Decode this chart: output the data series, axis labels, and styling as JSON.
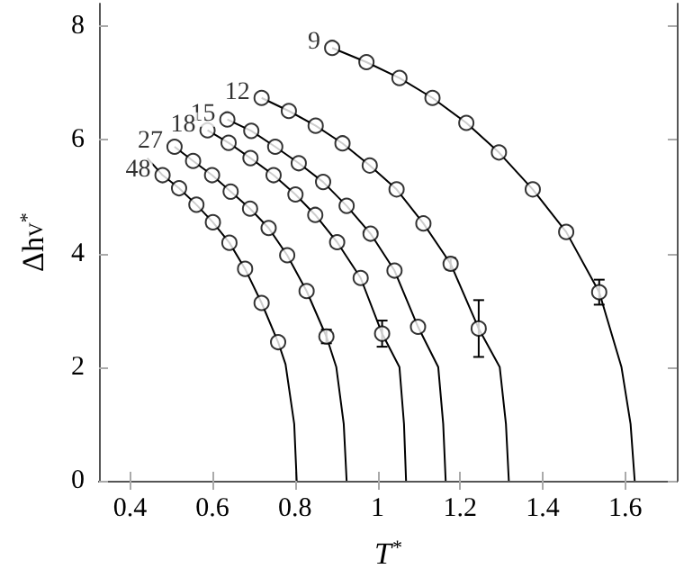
{
  "chart_data": {
    "type": "scatter",
    "xlabel": "T$^{*}$",
    "ylabel": "Δh$_{V}$$^{*}$",
    "xlim": [
      0.325,
      1.725
    ],
    "xticks": [
      0.4,
      0.6,
      0.8,
      1,
      1.2,
      1.4,
      1.6
    ],
    "ylim": [
      0,
      8.4
    ],
    "yticks": [
      0,
      2,
      4,
      6,
      8
    ],
    "grid": false,
    "legend": false,
    "marker": "circle",
    "line_style": "solid",
    "series": [
      {
        "type": "line",
        "marker": "none",
        "color": "#000000",
        "x": [
          0.89,
          0.973,
          1.053,
          1.133,
          1.215,
          1.294,
          1.376,
          1.457,
          1.537,
          1.591,
          1.613,
          1.623
        ],
        "values": [
          7.62,
          7.37,
          7.09,
          6.74,
          6.3,
          5.78,
          5.13,
          4.38,
          3.32,
          2,
          1,
          0
        ]
      },
      {
        "type": "line",
        "marker": "none",
        "color": "#000000",
        "x": [
          0.719,
          0.785,
          0.85,
          0.915,
          0.981,
          1.046,
          1.111,
          1.177,
          1.245,
          1.296,
          1.311,
          1.318
        ],
        "values": [
          6.74,
          6.51,
          6.25,
          5.94,
          5.55,
          5.13,
          4.53,
          3.82,
          2.68,
          2,
          1,
          0
        ]
      },
      {
        "type": "line",
        "marker": "none",
        "color": "#000000",
        "x": [
          0.636,
          0.694,
          0.752,
          0.809,
          0.868,
          0.925,
          0.983,
          1.041,
          1.098,
          1.147,
          1.159,
          1.165
        ],
        "values": [
          6.36,
          6.16,
          5.88,
          5.59,
          5.26,
          4.84,
          4.35,
          3.7,
          2.71,
          2,
          1,
          0
        ]
      },
      {
        "type": "line",
        "marker": "none",
        "color": "#000000",
        "x": [
          0.588,
          0.639,
          0.692,
          0.748,
          0.801,
          0.849,
          0.902,
          0.959,
          1.011,
          1.053,
          1.064,
          1.069
        ],
        "values": [
          6.17,
          5.95,
          5.68,
          5.38,
          5.04,
          4.68,
          4.2,
          3.57,
          2.59,
          2,
          1,
          0
        ]
      },
      {
        "type": "line",
        "marker": "none",
        "color": "#000000",
        "x": [
          0.508,
          0.553,
          0.599,
          0.644,
          0.691,
          0.736,
          0.781,
          0.828,
          0.876,
          0.9,
          0.918,
          0.925
        ],
        "values": [
          5.88,
          5.63,
          5.38,
          5.09,
          4.79,
          4.45,
          3.97,
          3.34,
          2.54,
          2,
          1,
          0
        ]
      },
      {
        "type": "line",
        "marker": "none",
        "color": "#000000",
        "x": [
          0.442,
          0.479,
          0.519,
          0.561,
          0.601,
          0.641,
          0.679,
          0.719,
          0.759,
          0.777,
          0.798,
          0.804
        ],
        "values": [
          5.68,
          5.38,
          5.15,
          4.86,
          4.55,
          4.19,
          3.73,
          3.13,
          2.44,
          2.05,
          1,
          0
        ]
      },
      {
        "name": "9",
        "color": "#000000",
        "x": [
          0.89,
          0.973,
          1.053,
          1.133,
          1.215,
          1.294,
          1.376,
          1.457,
          1.537
        ],
        "values": [
          7.62,
          7.37,
          7.09,
          6.74,
          6.3,
          5.78,
          5.13,
          4.38,
          3.32
        ],
        "errors": [
          null,
          null,
          null,
          null,
          null,
          null,
          null,
          null,
          0.22
        ]
      },
      {
        "name": "12",
        "color": "#000000",
        "x": [
          0.719,
          0.785,
          0.85,
          0.915,
          0.981,
          1.046,
          1.111,
          1.177,
          1.245
        ],
        "values": [
          6.74,
          6.51,
          6.25,
          5.94,
          5.55,
          5.13,
          4.53,
          3.82,
          2.68
        ],
        "errors": [
          null,
          null,
          null,
          null,
          null,
          null,
          null,
          0.1,
          0.5
        ]
      },
      {
        "name": "15",
        "color": "#000000",
        "x": [
          0.636,
          0.694,
          0.752,
          0.809,
          0.868,
          0.925,
          0.983,
          1.041,
          1.098
        ],
        "values": [
          6.36,
          6.16,
          5.88,
          5.59,
          5.26,
          4.84,
          4.35,
          3.7,
          2.71
        ]
      },
      {
        "name": "18",
        "color": "#000000",
        "x": [
          0.588,
          0.639,
          0.692,
          0.748,
          0.801,
          0.849,
          0.902,
          0.959,
          1.011
        ],
        "values": [
          6.17,
          5.95,
          5.68,
          5.38,
          5.04,
          4.68,
          4.2,
          3.57,
          2.59
        ],
        "errors": [
          null,
          null,
          null,
          null,
          null,
          null,
          null,
          null,
          0.23
        ]
      },
      {
        "name": "27",
        "color": "#000000",
        "x": [
          0.508,
          0.553,
          0.599,
          0.644,
          0.691,
          0.736,
          0.781,
          0.828,
          0.876
        ],
        "values": [
          5.88,
          5.63,
          5.38,
          5.09,
          4.79,
          4.45,
          3.97,
          3.34,
          2.54
        ],
        "errors": [
          null,
          null,
          null,
          null,
          null,
          null,
          null,
          null,
          0.12
        ]
      },
      {
        "name": "48",
        "color": "#000000",
        "x": [
          0.479,
          0.519,
          0.561,
          0.601,
          0.641,
          0.679,
          0.719,
          0.759
        ],
        "values": [
          5.38,
          5.15,
          4.86,
          4.55,
          4.19,
          3.73,
          3.13,
          2.44
        ]
      }
    ]
  }
}
